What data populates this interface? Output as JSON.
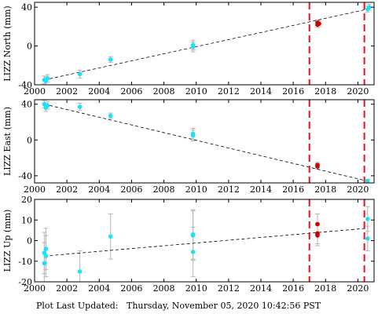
{
  "footer": {
    "label": "Plot Last Updated:",
    "timestamp": "Thursday, November 05, 2020 10:42:56 PST"
  },
  "colors": {
    "data_point": "#1de1f5",
    "highlight_point": "#cc0000",
    "error_bar": "#b5b5b5",
    "trend_line": "#000000",
    "event_line": "#e0141e"
  },
  "chart_data": [
    {
      "type": "scatter",
      "ylabel": "LIZZ North (mm)",
      "xlim": [
        2000,
        2021
      ],
      "ylim": [
        -40,
        45
      ],
      "xticks": [
        2000,
        2002,
        2004,
        2006,
        2008,
        2010,
        2012,
        2014,
        2016,
        2018,
        2020
      ],
      "yticks": [
        -40,
        0,
        40
      ],
      "show_xticklabels": true,
      "trend": [
        [
          2000.6,
          -35.0
        ],
        [
          2020.6,
          38.0
        ]
      ],
      "event_lines": [
        2017.0,
        2020.4
      ],
      "points": [
        {
          "x": 2000.6,
          "y": -35.0,
          "err": 4,
          "highlight": false
        },
        {
          "x": 2000.7,
          "y": -36.0,
          "err": 4,
          "highlight": false
        },
        {
          "x": 2000.8,
          "y": -33.5,
          "err": 4,
          "highlight": false
        },
        {
          "x": 2002.8,
          "y": -29.0,
          "err": 4,
          "highlight": false
        },
        {
          "x": 2004.7,
          "y": -14.0,
          "err": 3,
          "highlight": false
        },
        {
          "x": 2009.8,
          "y": 1.0,
          "err": 5,
          "highlight": false
        },
        {
          "x": 2009.8,
          "y": -1.0,
          "err": 5,
          "highlight": false
        },
        {
          "x": 2017.5,
          "y": 22.0,
          "err": 3,
          "highlight": true
        },
        {
          "x": 2017.5,
          "y": 24.0,
          "err": 3,
          "highlight": true
        },
        {
          "x": 2017.6,
          "y": 23.0,
          "err": 3,
          "highlight": true
        },
        {
          "x": 2020.6,
          "y": 38.0,
          "err": 3,
          "highlight": false
        },
        {
          "x": 2020.7,
          "y": 40.0,
          "err": 3,
          "highlight": false
        }
      ]
    },
    {
      "type": "scatter",
      "ylabel": "LIZZ East (mm)",
      "xlim": [
        2000,
        2021
      ],
      "ylim": [
        -48,
        45
      ],
      "xticks": [
        2000,
        2002,
        2004,
        2006,
        2008,
        2010,
        2012,
        2014,
        2016,
        2018,
        2020
      ],
      "yticks": [
        -40,
        0,
        40
      ],
      "show_xticklabels": true,
      "trend": [
        [
          2000.6,
          40.0
        ],
        [
          2020.6,
          -46.0
        ]
      ],
      "event_lines": [
        2017.0,
        2020.4
      ],
      "points": [
        {
          "x": 2000.6,
          "y": 40.0,
          "err": 4,
          "highlight": false
        },
        {
          "x": 2000.7,
          "y": 36.0,
          "err": 4,
          "highlight": false
        },
        {
          "x": 2000.8,
          "y": 38.5,
          "err": 4,
          "highlight": false
        },
        {
          "x": 2002.8,
          "y": 37.0,
          "err": 4,
          "highlight": false
        },
        {
          "x": 2004.7,
          "y": 27.0,
          "err": 3,
          "highlight": false
        },
        {
          "x": 2009.8,
          "y": 7.0,
          "err": 6,
          "highlight": false
        },
        {
          "x": 2009.8,
          "y": 5.0,
          "err": 6,
          "highlight": false
        },
        {
          "x": 2017.5,
          "y": -28.0,
          "err": 3,
          "highlight": true
        },
        {
          "x": 2017.5,
          "y": -29.5,
          "err": 3,
          "highlight": true
        },
        {
          "x": 2020.6,
          "y": -46.0,
          "err": 2,
          "highlight": false
        }
      ]
    },
    {
      "type": "scatter",
      "ylabel": "LIZZ Up (mm)",
      "xlim": [
        2000,
        2021
      ],
      "ylim": [
        -20,
        20
      ],
      "xticks": [
        2000,
        2002,
        2004,
        2006,
        2008,
        2010,
        2012,
        2014,
        2016,
        2018,
        2020
      ],
      "yticks": [
        -20,
        -10,
        0,
        10,
        20
      ],
      "show_xticklabels": true,
      "trend": [
        [
          2000.6,
          -7.5
        ],
        [
          2020.6,
          6.0
        ]
      ],
      "event_lines": [
        2017.0,
        2020.4
      ],
      "points": [
        {
          "x": 2000.6,
          "y": -11.0,
          "err": 10,
          "highlight": false
        },
        {
          "x": 2000.6,
          "y": -6.0,
          "err": 10,
          "highlight": false
        },
        {
          "x": 2000.7,
          "y": -4.0,
          "err": 10,
          "highlight": false
        },
        {
          "x": 2000.7,
          "y": -7.5,
          "err": 10,
          "highlight": false
        },
        {
          "x": 2002.8,
          "y": -15.0,
          "err": 10,
          "highlight": false
        },
        {
          "x": 2004.7,
          "y": 2.0,
          "err": 11,
          "highlight": false
        },
        {
          "x": 2009.8,
          "y": 2.5,
          "err": 12,
          "highlight": false
        },
        {
          "x": 2009.8,
          "y": 3.0,
          "err": 12,
          "highlight": false
        },
        {
          "x": 2009.8,
          "y": -5.5,
          "err": 12,
          "highlight": false
        },
        {
          "x": 2017.5,
          "y": 8.0,
          "err": 5,
          "highlight": true
        },
        {
          "x": 2017.5,
          "y": 3.5,
          "err": 5,
          "highlight": true
        },
        {
          "x": 2017.5,
          "y": 2.5,
          "err": 5,
          "highlight": true
        },
        {
          "x": 2020.6,
          "y": 10.5,
          "err": 6,
          "highlight": false
        },
        {
          "x": 2020.6,
          "y": 1.0,
          "err": 6,
          "highlight": false
        }
      ]
    }
  ]
}
